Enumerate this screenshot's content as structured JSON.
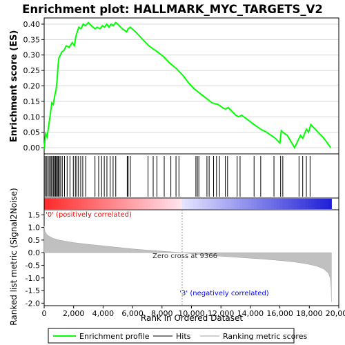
{
  "chart_data": {
    "type": "line",
    "title": "Enrichment plot: HALLMARK_MYC_TARGETS_V2",
    "top_panel": {
      "ylabel": "Enrichment score (ES)",
      "ylim": [
        -0.02,
        0.42
      ],
      "yticks": [
        "0.00",
        "0.05",
        "0.10",
        "0.15",
        "0.20",
        "0.25",
        "0.30",
        "0.35",
        "0.40"
      ],
      "ytick_values": [
        0.0,
        0.05,
        0.1,
        0.15,
        0.2,
        0.25,
        0.3,
        0.35,
        0.4
      ],
      "series": [
        {
          "name": "Enrichment profile",
          "color": "#00ff00",
          "x": [
            0,
            100,
            200,
            320,
            420,
            520,
            620,
            720,
            800,
            880,
            940,
            1000,
            1100,
            1200,
            1350,
            1500,
            1700,
            1900,
            2050,
            2150,
            2250,
            2350,
            2500,
            2650,
            2800,
            3000,
            3200,
            3450,
            3600,
            3800,
            3950,
            4100,
            4250,
            4400,
            4550,
            4700,
            4850,
            5000,
            5300,
            5600,
            5700,
            5850,
            6200,
            6600,
            7100,
            7400,
            7700,
            8100,
            8500,
            9000,
            9400,
            9800,
            10200,
            10600,
            11000,
            11400,
            11800,
            12100,
            12300,
            12500,
            12700,
            13000,
            13200,
            13400,
            13700,
            14100,
            14400,
            14700,
            15100,
            15400,
            15700,
            16000,
            16100,
            16200,
            16500,
            17000,
            17200,
            17400,
            17550,
            17800,
            17950,
            18100,
            18500,
            19000,
            19450
          ],
          "y": [
            -0.005,
            0.045,
            0.035,
            0.075,
            0.11,
            0.145,
            0.14,
            0.17,
            0.185,
            0.22,
            0.265,
            0.29,
            0.3,
            0.31,
            0.315,
            0.33,
            0.325,
            0.34,
            0.33,
            0.36,
            0.375,
            0.39,
            0.385,
            0.4,
            0.395,
            0.405,
            0.395,
            0.385,
            0.39,
            0.385,
            0.395,
            0.39,
            0.4,
            0.39,
            0.4,
            0.395,
            0.405,
            0.4,
            0.385,
            0.375,
            0.385,
            0.39,
            0.375,
            0.355,
            0.33,
            0.32,
            0.31,
            0.295,
            0.275,
            0.255,
            0.235,
            0.21,
            0.19,
            0.175,
            0.16,
            0.145,
            0.14,
            0.13,
            0.125,
            0.13,
            0.12,
            0.105,
            0.1,
            0.105,
            0.095,
            0.08,
            0.07,
            0.06,
            0.05,
            0.04,
            0.03,
            0.015,
            0.055,
            0.05,
            0.04,
            0.0,
            0.02,
            0.04,
            0.03,
            0.06,
            0.05,
            0.075,
            0.055,
            0.03,
            0.0
          ]
        }
      ]
    },
    "hits": [
      60,
      150,
      240,
      330,
      410,
      480,
      560,
      640,
      700,
      770,
      830,
      900,
      960,
      1030,
      1120,
      1230,
      1380,
      1560,
      1750,
      1980,
      2120,
      2220,
      2330,
      2480,
      2620,
      2820,
      3450,
      3700,
      3900,
      4080,
      4260,
      4480,
      4680,
      4860,
      5640,
      5700,
      5850,
      7050,
      7400,
      7650,
      8150,
      8600,
      8950,
      9150,
      10300,
      10400,
      10500,
      11050,
      11200,
      11500,
      11700,
      11900,
      12300,
      12450,
      13100,
      13300,
      14250,
      14700,
      15600,
      16050,
      16200,
      17300,
      17550,
      17800,
      18050
    ],
    "ranked_list": {
      "ylabel": "Ranked list metric (Signal2Noise)",
      "xlabel": "Rank in Ordered Dataset",
      "ylim": [
        -2.1,
        1.7
      ],
      "yticks": [
        "1.5",
        "1.0",
        "0.5",
        "0.0",
        "-0.5",
        "-1.0",
        "-1.5",
        "-2.0"
      ],
      "ytick_values": [
        1.5,
        1.0,
        0.5,
        0.0,
        -0.5,
        -1.0,
        -1.5,
        -2.0
      ],
      "xlim": [
        0,
        20000
      ],
      "xticks": [
        "0",
        "2,000",
        "4,000",
        "6,000",
        "8,000",
        "10,000",
        "12,000",
        "14,000",
        "16,000",
        "18,000",
        "20,000"
      ],
      "xtick_values": [
        0,
        2000,
        4000,
        6000,
        8000,
        10000,
        12000,
        14000,
        16000,
        18000,
        20000
      ],
      "metric_x": [
        0,
        50,
        150,
        300,
        600,
        1000,
        2000,
        3000,
        4000,
        5000,
        6000,
        7000,
        8000,
        9000,
        9366,
        10000,
        11000,
        12000,
        13000,
        14000,
        15000,
        16000,
        17000,
        17800,
        18500,
        19000,
        19300,
        19420,
        19480,
        19500
      ],
      "metric_y": [
        1.05,
        0.85,
        0.75,
        0.66,
        0.57,
        0.5,
        0.4,
        0.33,
        0.27,
        0.21,
        0.15,
        0.1,
        0.06,
        0.02,
        0.0,
        -0.04,
        -0.09,
        -0.14,
        -0.18,
        -0.22,
        -0.26,
        -0.31,
        -0.37,
        -0.44,
        -0.53,
        -0.65,
        -0.82,
        -1.0,
        -1.4,
        -1.95
      ],
      "zero_cross_label": "Zero cross at 9366",
      "zero_cross_x": 9366,
      "positive_label": "'0' (positively correlated)",
      "negative_label": "'3' (negatively correlated)"
    },
    "total_rank": 19500,
    "legend": {
      "items": [
        {
          "label": "Enrichment profile",
          "color": "#00ff00"
        },
        {
          "label": "Hits",
          "color": "#000000"
        },
        {
          "label": "Ranking metric scores",
          "color": "#c0c0c0"
        }
      ]
    },
    "colors": {
      "positive_label": "#ff0000",
      "negative_label": "#0000ff",
      "metric_fill": "#c0c0c0",
      "grid": "#d8d8d8"
    },
    "grid": true
  }
}
